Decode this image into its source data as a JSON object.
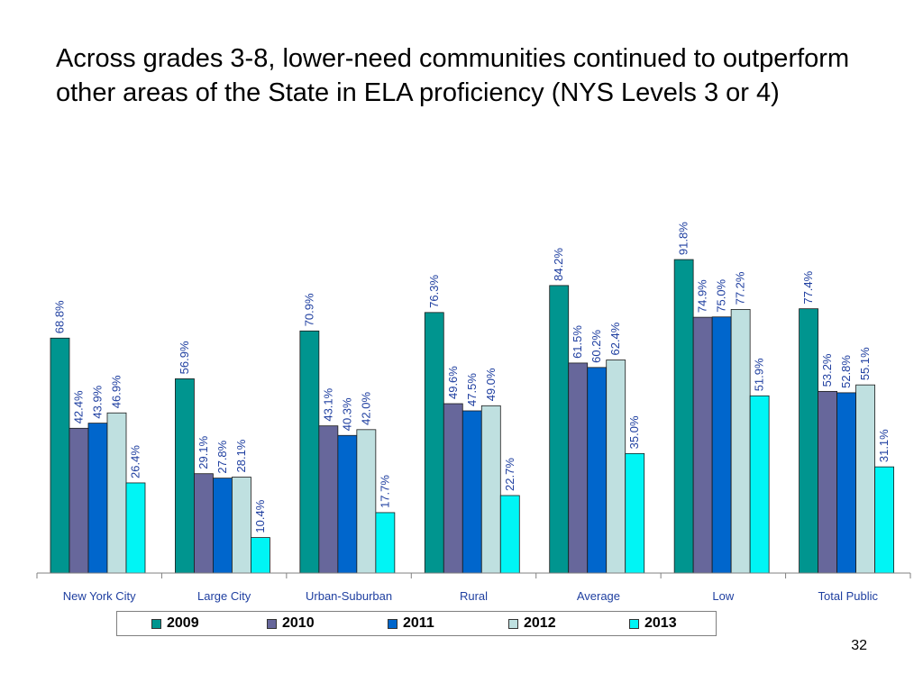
{
  "slide": {
    "title": "Across grades 3-8, lower-need communities continued to outperform other areas of the State in ELA proficiency (NYS Levels 3 or 4)",
    "page_number": "32"
  },
  "chart_data": {
    "type": "bar",
    "title": "",
    "xlabel": "",
    "ylabel": "",
    "ylim": [
      0,
      100
    ],
    "grid": false,
    "legend_position": "bottom",
    "value_label_color": "#1f3fa0",
    "categories": [
      "New York City",
      "Large City",
      "Urban-Suburban",
      "Rural",
      "Average",
      "Low",
      "Total Public"
    ],
    "series": [
      {
        "name": "2009",
        "color": "#00958f",
        "values": [
          68.8,
          56.9,
          70.9,
          76.3,
          84.2,
          91.8,
          77.4
        ],
        "labels": [
          "68.8%",
          "56.9%",
          "70.9%",
          "76.3%",
          "84.2%",
          "91.8%",
          "77.4%"
        ]
      },
      {
        "name": "2010",
        "color": "#67679b",
        "values": [
          42.4,
          29.1,
          43.1,
          49.6,
          61.5,
          74.9,
          53.2
        ],
        "labels": [
          "42.4%",
          "29.1%",
          "43.1%",
          "49.6%",
          "61.5%",
          "74.9%",
          "53.2%"
        ]
      },
      {
        "name": "2011",
        "color": "#0066cc",
        "values": [
          43.9,
          27.8,
          40.3,
          47.5,
          60.2,
          75.0,
          52.8
        ],
        "labels": [
          "43.9%",
          "27.8%",
          "40.3%",
          "47.5%",
          "60.2%",
          "75.0%",
          "52.8%"
        ]
      },
      {
        "name": "2012",
        "color": "#bfe0e0",
        "values": [
          46.9,
          28.1,
          42.0,
          49.0,
          62.4,
          77.2,
          55.1
        ],
        "labels": [
          "46.9%",
          "28.1%",
          "42.0%",
          "49.0%",
          "62.4%",
          "77.2%",
          "55.1%"
        ]
      },
      {
        "name": "2013",
        "color": "#00f5f5",
        "values": [
          26.4,
          10.4,
          17.7,
          22.7,
          35.0,
          51.9,
          31.1
        ],
        "labels": [
          "26.4%",
          "10.4%",
          "17.7%",
          "22.7%",
          "35.0%",
          "51.9%",
          "31.1%"
        ]
      }
    ]
  }
}
